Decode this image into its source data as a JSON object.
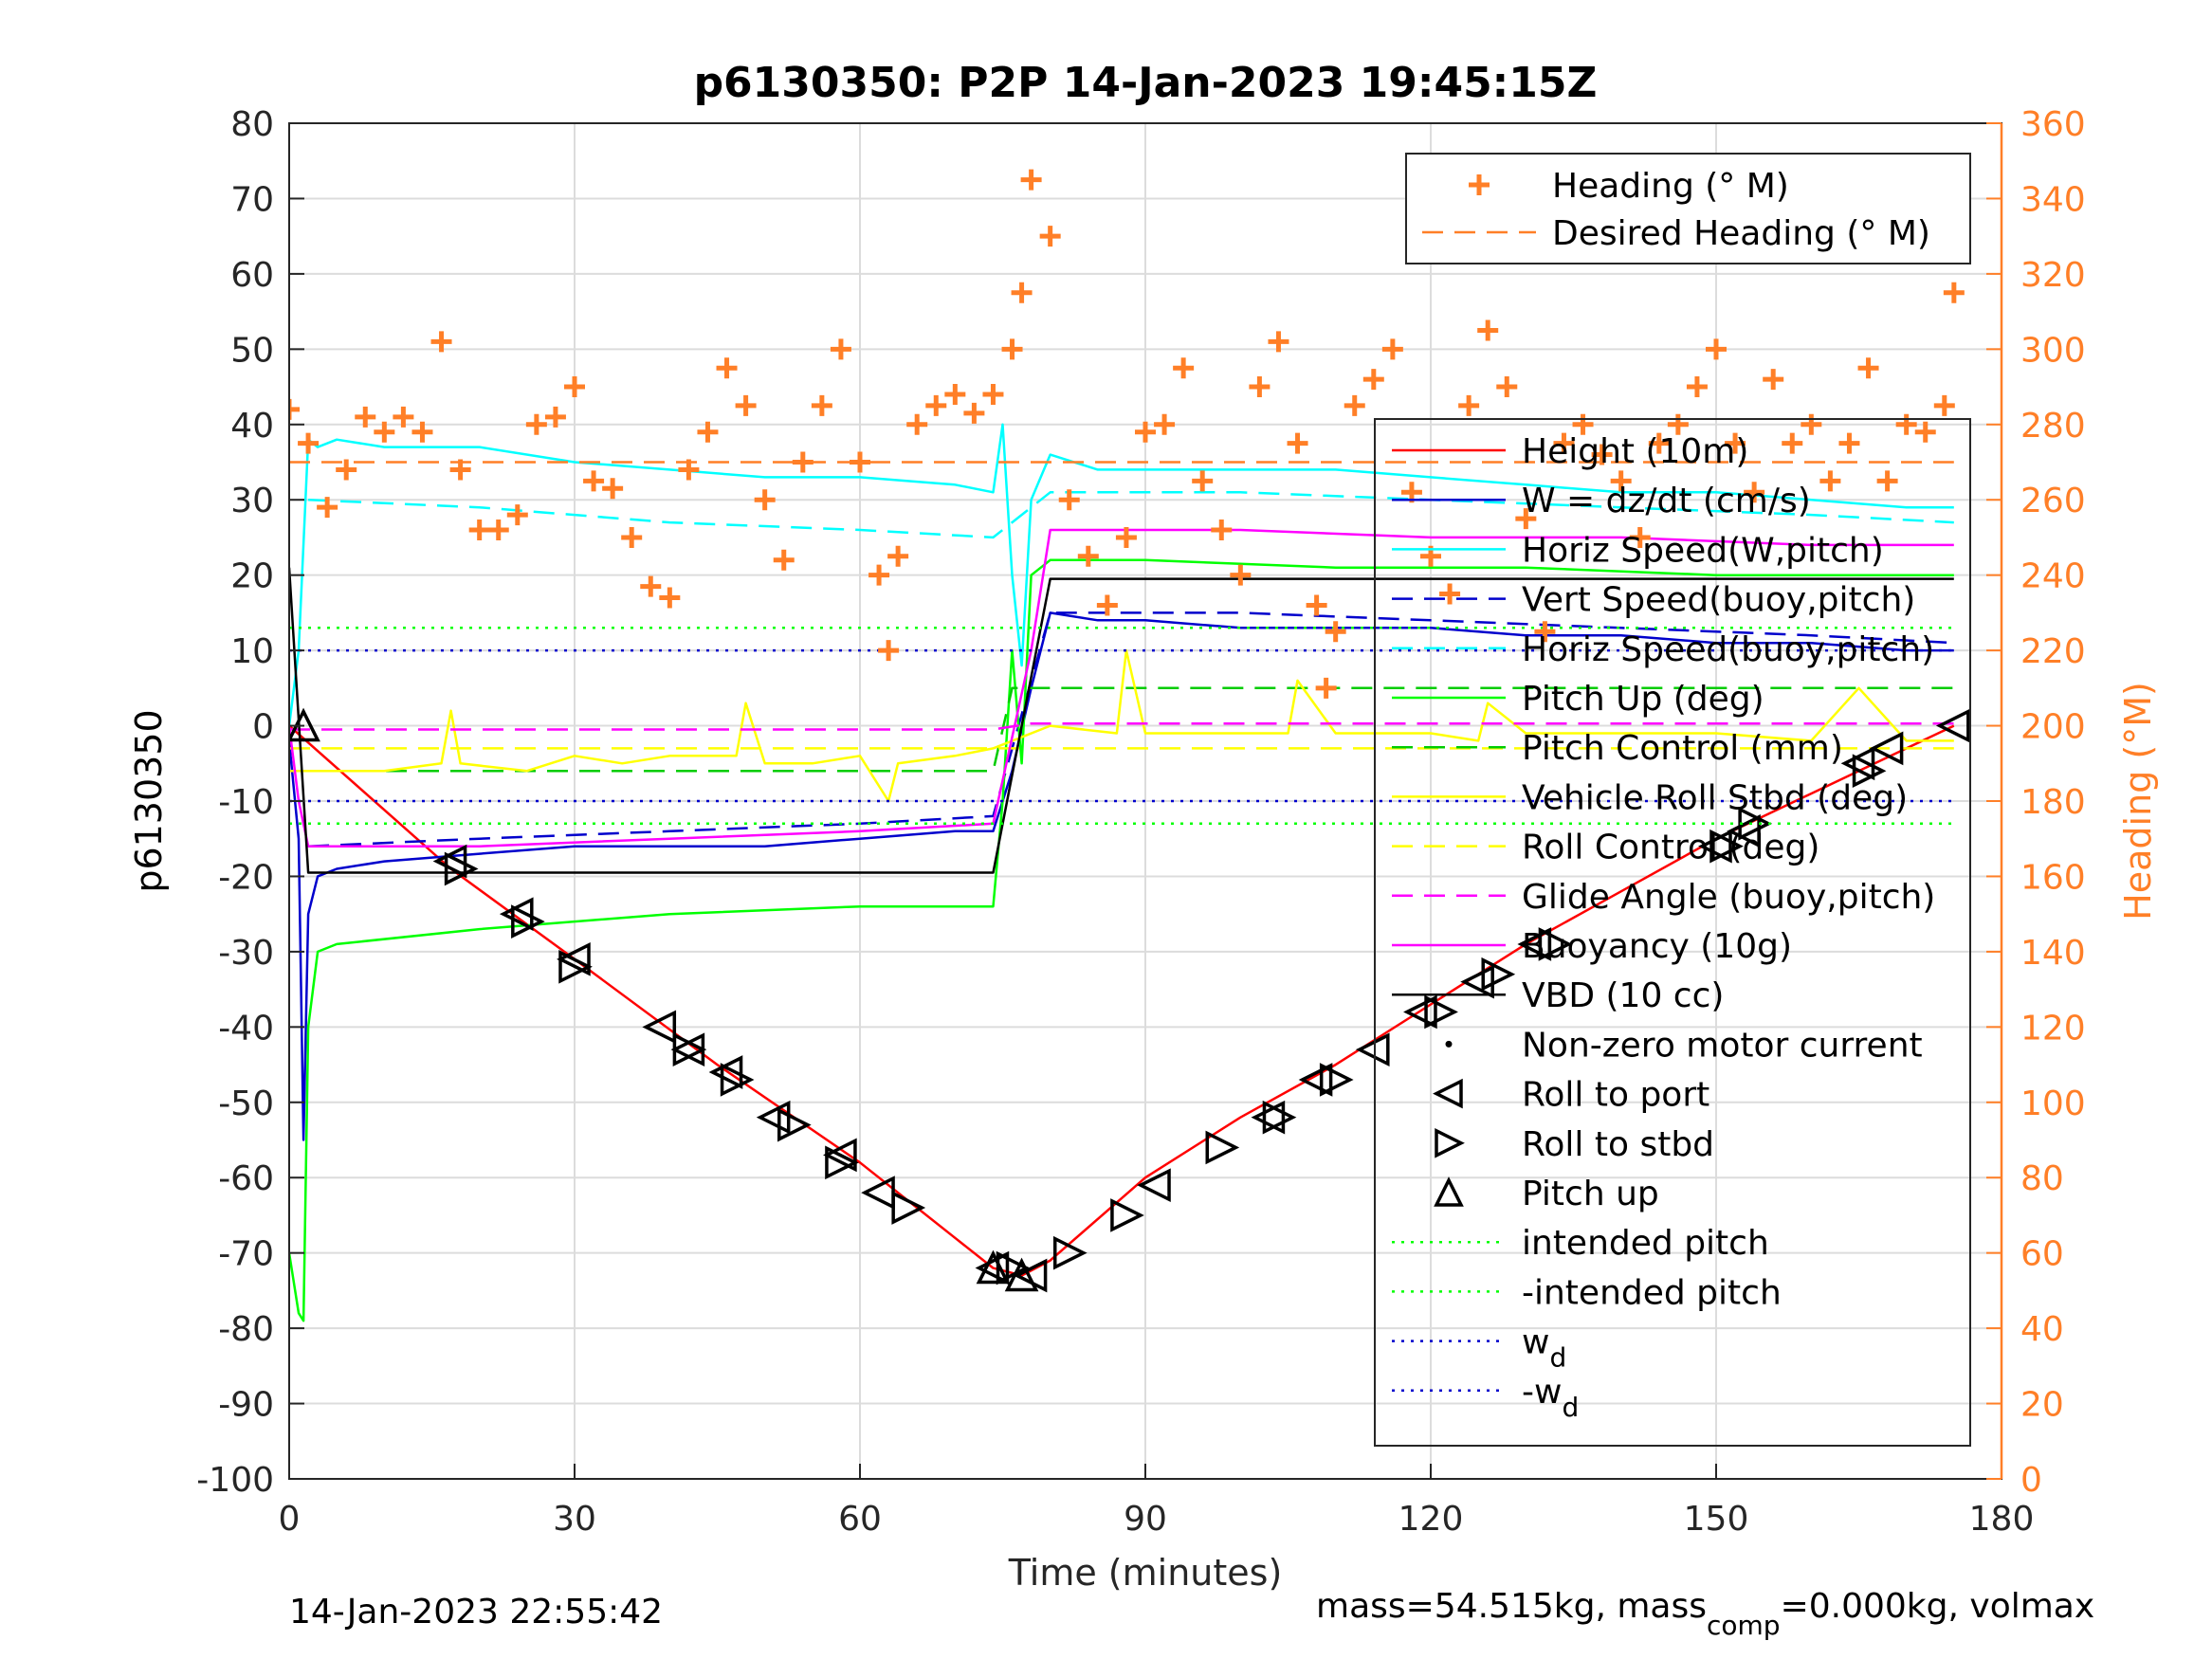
{
  "chart_data": {
    "type": "line",
    "title": "p6130350: P2P 14-Jan-2023 19:45:15Z",
    "xlabel": "Time (minutes)",
    "ylabel": "p6130350",
    "y2label": "Heading (°M)",
    "xlim": [
      0,
      180
    ],
    "ylim": [
      -100,
      80
    ],
    "y2lim": [
      0,
      360
    ],
    "xticks": [
      0,
      30,
      60,
      90,
      120,
      150,
      180
    ],
    "yticks": [
      -100,
      -90,
      -80,
      -70,
      -60,
      -50,
      -40,
      -30,
      -20,
      -10,
      0,
      10,
      20,
      30,
      40,
      50,
      60,
      70,
      80
    ],
    "y2ticks": [
      0,
      20,
      40,
      60,
      80,
      100,
      120,
      140,
      160,
      180,
      200,
      220,
      240,
      260,
      280,
      300,
      320,
      340,
      360
    ],
    "grid": true,
    "footer_left": "14-Jan-2023 22:55:42",
    "footer_right": {
      "pre": "mass=54.515kg, mass",
      "sub": "comp",
      "post": "=0.000kg, volmax"
    },
    "legend_top": {
      "placement": "top-right",
      "entries": [
        {
          "label": "Heading (° M)",
          "color": "#FF7F27",
          "style": "plus"
        },
        {
          "label": "Desired Heading (° M)",
          "color": "#FF7F27",
          "style": "dashed"
        }
      ]
    },
    "legend_main": {
      "placement": "right",
      "entries": [
        {
          "label": "Height (10m)",
          "color": "#FF0000",
          "style": "solid"
        },
        {
          "label": "W = dz/dt (cm/s)",
          "color": "#0000CC",
          "style": "solid"
        },
        {
          "label": "Horiz Speed(W,pitch)",
          "color": "#00FFFF",
          "style": "solid"
        },
        {
          "label": "Vert Speed(buoy,pitch)",
          "color": "#0000CC",
          "style": "dashed"
        },
        {
          "label": "Horiz Speed(buoy,pitch)",
          "color": "#00FFFF",
          "style": "dashed"
        },
        {
          "label": "Pitch Up (deg)",
          "color": "#00FF00",
          "style": "solid"
        },
        {
          "label": "Pitch Control (mm)",
          "color": "#00CC00",
          "style": "dashed"
        },
        {
          "label": "Vehicle Roll Stbd (deg)",
          "color": "#FFFF00",
          "style": "solid"
        },
        {
          "label": "Roll Control (deg)",
          "color": "#FFFF00",
          "style": "dashed"
        },
        {
          "label": "Glide Angle (buoy,pitch)",
          "color": "#FF00FF",
          "style": "dashed"
        },
        {
          "label": "Buoyancy (10g)",
          "color": "#FF00FF",
          "style": "solid"
        },
        {
          "label": "VBD (10 cc)",
          "color": "#000000",
          "style": "solid"
        },
        {
          "label": "Non-zero motor current",
          "color": "#000000",
          "style": "dot"
        },
        {
          "label": "Roll to port",
          "color": "#000000",
          "style": "tri-left"
        },
        {
          "label": "Roll to stbd",
          "color": "#000000",
          "style": "tri-right"
        },
        {
          "label": "Pitch up",
          "color": "#000000",
          "style": "tri-up"
        },
        {
          "label": "intended pitch",
          "color": "#00FF00",
          "style": "dotted"
        },
        {
          "label": "-intended pitch",
          "color": "#00FF00",
          "style": "dotted"
        },
        {
          "label": "w",
          "sub": "d",
          "color": "#0000CC",
          "style": "dotted"
        },
        {
          "label": "-w",
          "sub": "d",
          "color": "#0000CC",
          "style": "dotted"
        }
      ]
    },
    "series": [
      {
        "name": "Height (10m)",
        "color": "#FF0000",
        "style": "solid",
        "x": [
          0,
          17,
          30,
          45,
          60,
          70,
          74,
          77,
          80,
          90,
          100,
          110,
          120,
          130,
          140,
          150,
          160,
          170,
          175
        ],
        "y": [
          0,
          -19,
          -31,
          -45,
          -58,
          -68,
          -72,
          -73,
          -71,
          -60,
          -52,
          -45,
          -37,
          -29,
          -22,
          -15,
          -9,
          -3,
          0
        ]
      },
      {
        "name": "W = dz/dt (cm/s)",
        "color": "#0000CC",
        "style": "solid",
        "x": [
          0,
          1,
          1.5,
          2,
          3,
          5,
          10,
          20,
          30,
          40,
          50,
          60,
          70,
          74,
          76,
          78,
          80,
          85,
          90,
          100,
          110,
          120,
          130,
          140,
          150,
          160,
          170,
          175
        ],
        "y": [
          -2,
          -15,
          -55,
          -25,
          -20,
          -19,
          -18,
          -17,
          -16,
          -16,
          -16,
          -15,
          -14,
          -14,
          -6,
          5,
          15,
          14,
          14,
          13,
          13,
          13,
          12,
          12,
          11,
          11,
          10,
          10
        ]
      },
      {
        "name": "Horiz Speed(W,pitch)",
        "color": "#00FFFF",
        "style": "solid",
        "x": [
          0,
          1,
          2,
          3,
          5,
          10,
          20,
          30,
          40,
          50,
          60,
          70,
          74,
          75,
          76,
          77,
          78,
          80,
          85,
          90,
          100,
          110,
          120,
          130,
          140,
          150,
          160,
          170,
          175
        ],
        "y": [
          0,
          10,
          38,
          37,
          38,
          37,
          37,
          35,
          34,
          33,
          33,
          32,
          31,
          40,
          20,
          8,
          30,
          36,
          34,
          34,
          34,
          34,
          33,
          32,
          31,
          31,
          30,
          29,
          29
        ]
      },
      {
        "name": "Vert Speed(buoy,pitch)",
        "color": "#0000CC",
        "style": "dashed",
        "x": [
          2,
          20,
          40,
          60,
          74,
          80,
          100,
          120,
          140,
          160,
          175
        ],
        "y": [
          -16,
          -15,
          -14,
          -13,
          -12,
          15,
          15,
          14,
          13,
          12,
          11
        ]
      },
      {
        "name": "Horiz Speed(buoy,pitch)",
        "color": "#00FFFF",
        "style": "dashed",
        "x": [
          2,
          20,
          40,
          60,
          74,
          80,
          100,
          120,
          140,
          160,
          175
        ],
        "y": [
          30,
          29,
          27,
          26,
          25,
          31,
          31,
          30,
          29,
          28,
          27
        ]
      },
      {
        "name": "Pitch Up (deg)",
        "color": "#00FF00",
        "style": "solid",
        "x": [
          0,
          1,
          1.5,
          2,
          3,
          5,
          20,
          40,
          60,
          74,
          75,
          76,
          77,
          78,
          80,
          90,
          110,
          130,
          150,
          175
        ],
        "y": [
          -70,
          -78,
          -79,
          -40,
          -30,
          -29,
          -27,
          -25,
          -24,
          -24,
          -10,
          10,
          -5,
          20,
          22,
          22,
          21,
          21,
          20,
          20
        ]
      },
      {
        "name": "Pitch Control (mm)",
        "color": "#00CC00",
        "style": "dashed",
        "x": [
          0,
          74,
          76,
          78,
          175
        ],
        "y": [
          -6,
          -6,
          5,
          5,
          5
        ]
      },
      {
        "name": "Vehicle Roll Stbd (deg)",
        "color": "#FFFF00",
        "style": "solid",
        "x": [
          0,
          10,
          16,
          17,
          18,
          25,
          30,
          35,
          40,
          47,
          48,
          50,
          55,
          60,
          63,
          64,
          70,
          74,
          80,
          87,
          88,
          90,
          100,
          105,
          106,
          110,
          120,
          125,
          126,
          130,
          140,
          150,
          160,
          165,
          170,
          175
        ],
        "y": [
          -6,
          -6,
          -5,
          2,
          -5,
          -6,
          -4,
          -5,
          -4,
          -4,
          3,
          -5,
          -5,
          -4,
          -10,
          -5,
          -4,
          -3,
          0,
          -1,
          10,
          -1,
          -1,
          -1,
          6,
          -1,
          -1,
          -2,
          3,
          -1,
          -1,
          -1,
          -2,
          5,
          -2,
          -2
        ]
      },
      {
        "name": "Roll Control (deg)",
        "color": "#FFFF00",
        "style": "dashed",
        "x": [
          0,
          175
        ],
        "y": [
          -3,
          -3
        ]
      },
      {
        "name": "Glide Angle (buoy,pitch)",
        "color": "#FF00FF",
        "style": "dashed",
        "x": [
          0,
          74,
          78,
          175
        ],
        "y": [
          -0.5,
          -0.5,
          0.3,
          0.3
        ]
      },
      {
        "name": "Buoyancy (10g)",
        "color": "#FF00FF",
        "style": "solid",
        "x": [
          0,
          1,
          2,
          5,
          20,
          40,
          60,
          74,
          78,
          80,
          100,
          120,
          140,
          160,
          175
        ],
        "y": [
          0,
          -10,
          -16,
          -16,
          -16,
          -15,
          -14,
          -13,
          10,
          26,
          26,
          25,
          25,
          24,
          24
        ]
      },
      {
        "name": "VBD (10 cc)",
        "color": "#000000",
        "style": "solid",
        "x": [
          0,
          2,
          74,
          80,
          175
        ],
        "y": [
          21,
          -19.5,
          -19.5,
          19.5,
          19.5
        ]
      },
      {
        "name": "Roll to port",
        "color": "#000000",
        "style": "tri-left",
        "x": [
          17,
          24,
          30,
          39,
          42,
          46,
          51,
          58,
          62,
          74,
          78,
          91,
          103,
          108,
          114,
          119,
          125,
          131,
          150,
          153,
          165,
          168,
          175
        ],
        "y": [
          -18,
          -25,
          -31,
          -40,
          -43,
          -46,
          -52,
          -57,
          -62,
          -72,
          -73,
          -61,
          -52,
          -47,
          -43,
          -38,
          -34,
          -29,
          -16,
          -14,
          -5,
          -3,
          0
        ]
      },
      {
        "name": "Roll to stbd",
        "color": "#000000",
        "style": "tri-right",
        "x": [
          18,
          25,
          30,
          42,
          47,
          53,
          58,
          65,
          76,
          82,
          88,
          98,
          104,
          110,
          121,
          127,
          133,
          151,
          154,
          166
        ],
        "y": [
          -19,
          -26,
          -32,
          -43,
          -47,
          -53,
          -58,
          -64,
          -72,
          -70,
          -65,
          -56,
          -52,
          -47,
          -38,
          -33,
          -29,
          -16,
          -13,
          -6
        ]
      },
      {
        "name": "Pitch up",
        "color": "#000000",
        "style": "tri-up",
        "x": [
          1.5,
          74,
          77
        ],
        "y": [
          0,
          -72,
          -73
        ]
      },
      {
        "name": "intended pitch",
        "color": "#00FF00",
        "style": "dotted",
        "x": [
          0,
          175
        ],
        "y": [
          13,
          13
        ]
      },
      {
        "name": "-intended pitch",
        "color": "#00FF00",
        "style": "dotted",
        "x": [
          0,
          175
        ],
        "y": [
          -13,
          -13
        ]
      },
      {
        "name": "w_d",
        "color": "#0000CC",
        "style": "dotted",
        "x": [
          0,
          175
        ],
        "y": [
          10,
          10
        ]
      },
      {
        "name": "-w_d",
        "color": "#0000CC",
        "style": "dotted",
        "x": [
          0,
          175
        ],
        "y": [
          -10,
          -10
        ]
      },
      {
        "name": "Desired Heading (° M)",
        "color": "#FF7F27",
        "style": "dashed",
        "axis": "right",
        "x": [
          0,
          175
        ],
        "y": [
          270,
          270
        ]
      },
      {
        "name": "Heading (° M)",
        "color": "#FF7F27",
        "style": "plus",
        "axis": "right",
        "x": [
          0,
          2,
          4,
          6,
          8,
          10,
          12,
          14,
          16,
          18,
          20,
          22,
          24,
          26,
          28,
          30,
          32,
          34,
          36,
          38,
          40,
          42,
          44,
          46,
          48,
          50,
          52,
          54,
          56,
          58,
          60,
          62,
          63,
          64,
          66,
          68,
          70,
          72,
          74,
          76,
          77,
          78,
          80,
          82,
          84,
          86,
          88,
          90,
          92,
          94,
          96,
          98,
          100,
          102,
          104,
          106,
          108,
          109,
          110,
          112,
          114,
          116,
          118,
          120,
          122,
          124,
          126,
          128,
          130,
          132,
          134,
          136,
          138,
          140,
          142,
          144,
          146,
          148,
          150,
          152,
          154,
          156,
          158,
          160,
          162,
          164,
          166,
          168,
          170,
          172,
          174,
          175
        ],
        "y": [
          284,
          275,
          258,
          268,
          282,
          278,
          282,
          278,
          302,
          268,
          252,
          252,
          256,
          280,
          282,
          290,
          265,
          263,
          250,
          237,
          234,
          268,
          278,
          295,
          285,
          260,
          244,
          270,
          285,
          300,
          270,
          240,
          220,
          245,
          280,
          285,
          288,
          283,
          288,
          300,
          315,
          345,
          330,
          260,
          245,
          232,
          250,
          278,
          280,
          295,
          265,
          252,
          240,
          290,
          302,
          275,
          232,
          210,
          225,
          285,
          292,
          300,
          262,
          245,
          235,
          285,
          305,
          290,
          255,
          225,
          275,
          280,
          272,
          265,
          250,
          275,
          280,
          290,
          300,
          275,
          262,
          292,
          275,
          280,
          265,
          275,
          295,
          265,
          280,
          278,
          285,
          315
        ]
      }
    ]
  }
}
